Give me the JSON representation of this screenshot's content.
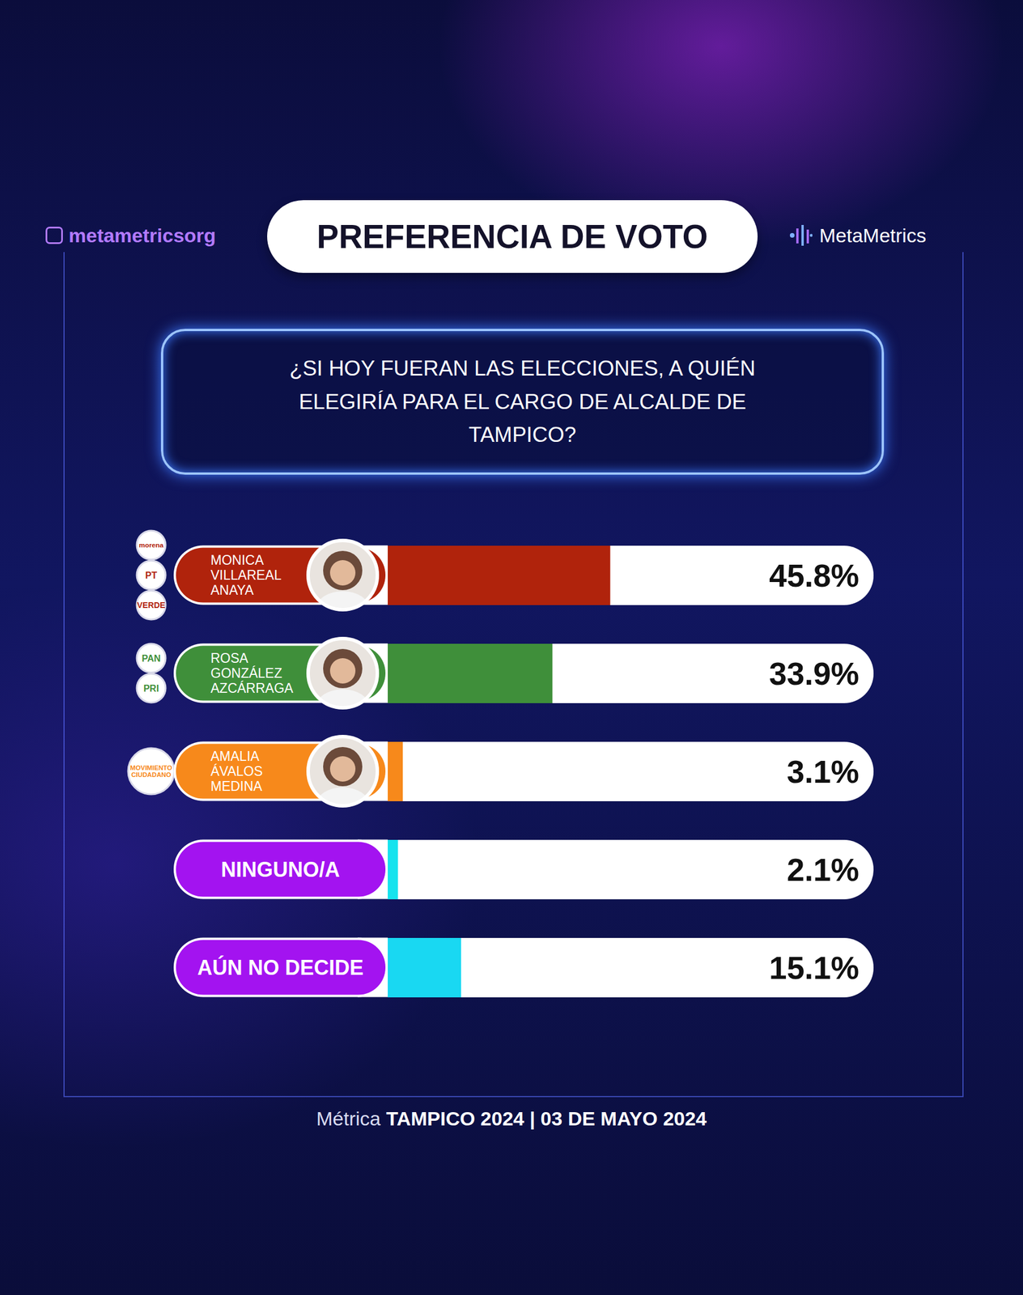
{
  "chart_data": {
    "type": "bar",
    "orientation": "horizontal",
    "title": "PREFERENCIA DE VOTO",
    "subtitle": "¿SI HOY FUERAN LAS ELECCIONES, A QUIÉN ELEGIRÍA PARA EL CARGO DE ALCALDE DE TAMPICO?",
    "categories": [
      "MONICA VILLAREAL ANAYA",
      "ROSA GONZÁLEZ AZCÁRRAGA",
      "AMALIA ÁVALOS MEDINA",
      "NINGUNO/A",
      "AÚN NO DECIDE"
    ],
    "values": [
      45.8,
      33.9,
      3.1,
      2.1,
      15.1
    ],
    "value_labels": [
      "45.8%",
      "33.9%",
      "3.1%",
      "2.1%",
      "15.1%"
    ],
    "colors": [
      "#b0230c",
      "#3f8f3a",
      "#f7891b",
      "#16e3ee",
      "#19d8f2"
    ],
    "parties": [
      [
        "morena",
        "PT",
        "VERDE"
      ],
      [
        "PAN",
        "PRI"
      ],
      [
        "MOVIMIENTO CIUDADANO"
      ],
      [],
      []
    ],
    "xlim": [
      0,
      100
    ],
    "data_labels": true,
    "tick_labels": "y",
    "grid": false,
    "source": "metametricsorg",
    "brand": "MetaMetrics",
    "footer": "Métrica TAMPICO 2024 | 03 DE MAYO 2024"
  }
}
